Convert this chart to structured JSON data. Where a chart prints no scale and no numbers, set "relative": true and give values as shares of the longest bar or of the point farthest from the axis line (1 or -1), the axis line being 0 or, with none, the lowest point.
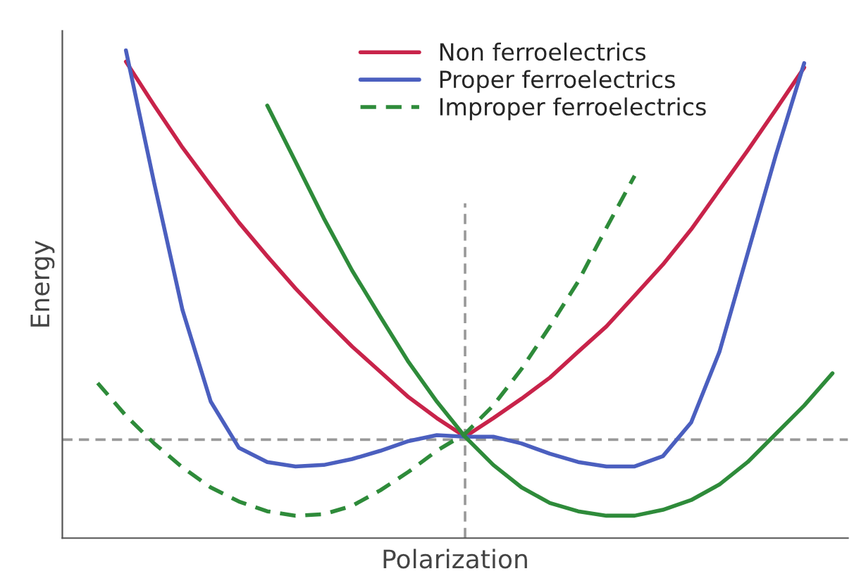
{
  "chart_data": {
    "type": "line",
    "relative": true,
    "xlabel": "Polarization",
    "ylabel": "Energy",
    "legend": "top",
    "grid": false,
    "marker": "none",
    "categories": [
      null,
      null,
      null,
      null,
      null,
      null,
      null,
      null,
      null,
      null,
      null,
      null,
      null,
      null,
      null,
      null,
      null,
      null,
      null,
      null,
      null,
      null,
      null,
      null,
      null,
      null,
      null,
      null
    ],
    "series": [
      {
        "name": "Non ferroelectrics",
        "color": "#c8234a",
        "line_style": "solid",
        "values": [
          null,
          null,
          0.977,
          0.887,
          0.801,
          0.723,
          0.647,
          0.578,
          0.512,
          0.451,
          0.393,
          0.341,
          0.289,
          0.246,
          0.208,
          0.246,
          0.286,
          0.329,
          0.382,
          0.434,
          0.497,
          0.561,
          0.633,
          0.714,
          0.795,
          0.879,
          0.965,
          null
        ]
      },
      {
        "name": "Proper ferroelectrics",
        "color": "#4b5fbf",
        "line_style": "solid",
        "values": [
          null,
          null,
          1.0,
          0.728,
          0.468,
          0.28,
          0.185,
          0.156,
          0.147,
          0.15,
          0.162,
          0.179,
          0.199,
          0.211,
          0.208,
          0.208,
          0.194,
          0.173,
          0.156,
          0.147,
          0.147,
          0.168,
          0.237,
          0.382,
          0.584,
          0.786,
          0.974,
          null
        ]
      },
      {
        "color": "#2e8b3a",
        "line_style": "solid",
        "values": [
          null,
          null,
          null,
          null,
          null,
          null,
          null,
          0.887,
          0.772,
          0.656,
          0.549,
          0.454,
          0.361,
          0.28,
          0.208,
          0.15,
          0.104,
          0.072,
          0.055,
          0.046,
          0.046,
          0.058,
          0.078,
          0.11,
          0.156,
          0.214,
          0.272,
          0.338
        ]
      },
      {
        "name": "Improper ferroelectrics",
        "color": "#2e8b3a",
        "line_style": "dashed",
        "values": [
          null,
          0.318,
          0.251,
          0.194,
          0.145,
          0.104,
          0.075,
          0.055,
          0.046,
          0.049,
          0.066,
          0.098,
          0.136,
          0.179,
          0.214,
          0.272,
          0.347,
          0.434,
          0.526,
          0.636,
          0.743,
          null,
          null,
          null,
          null,
          null,
          null,
          null
        ]
      }
    ],
    "ref_lines": [
      {
        "axis": "y",
        "value": 0.202,
        "color": "#999999",
        "line_style": "dashed"
      }
    ]
  }
}
